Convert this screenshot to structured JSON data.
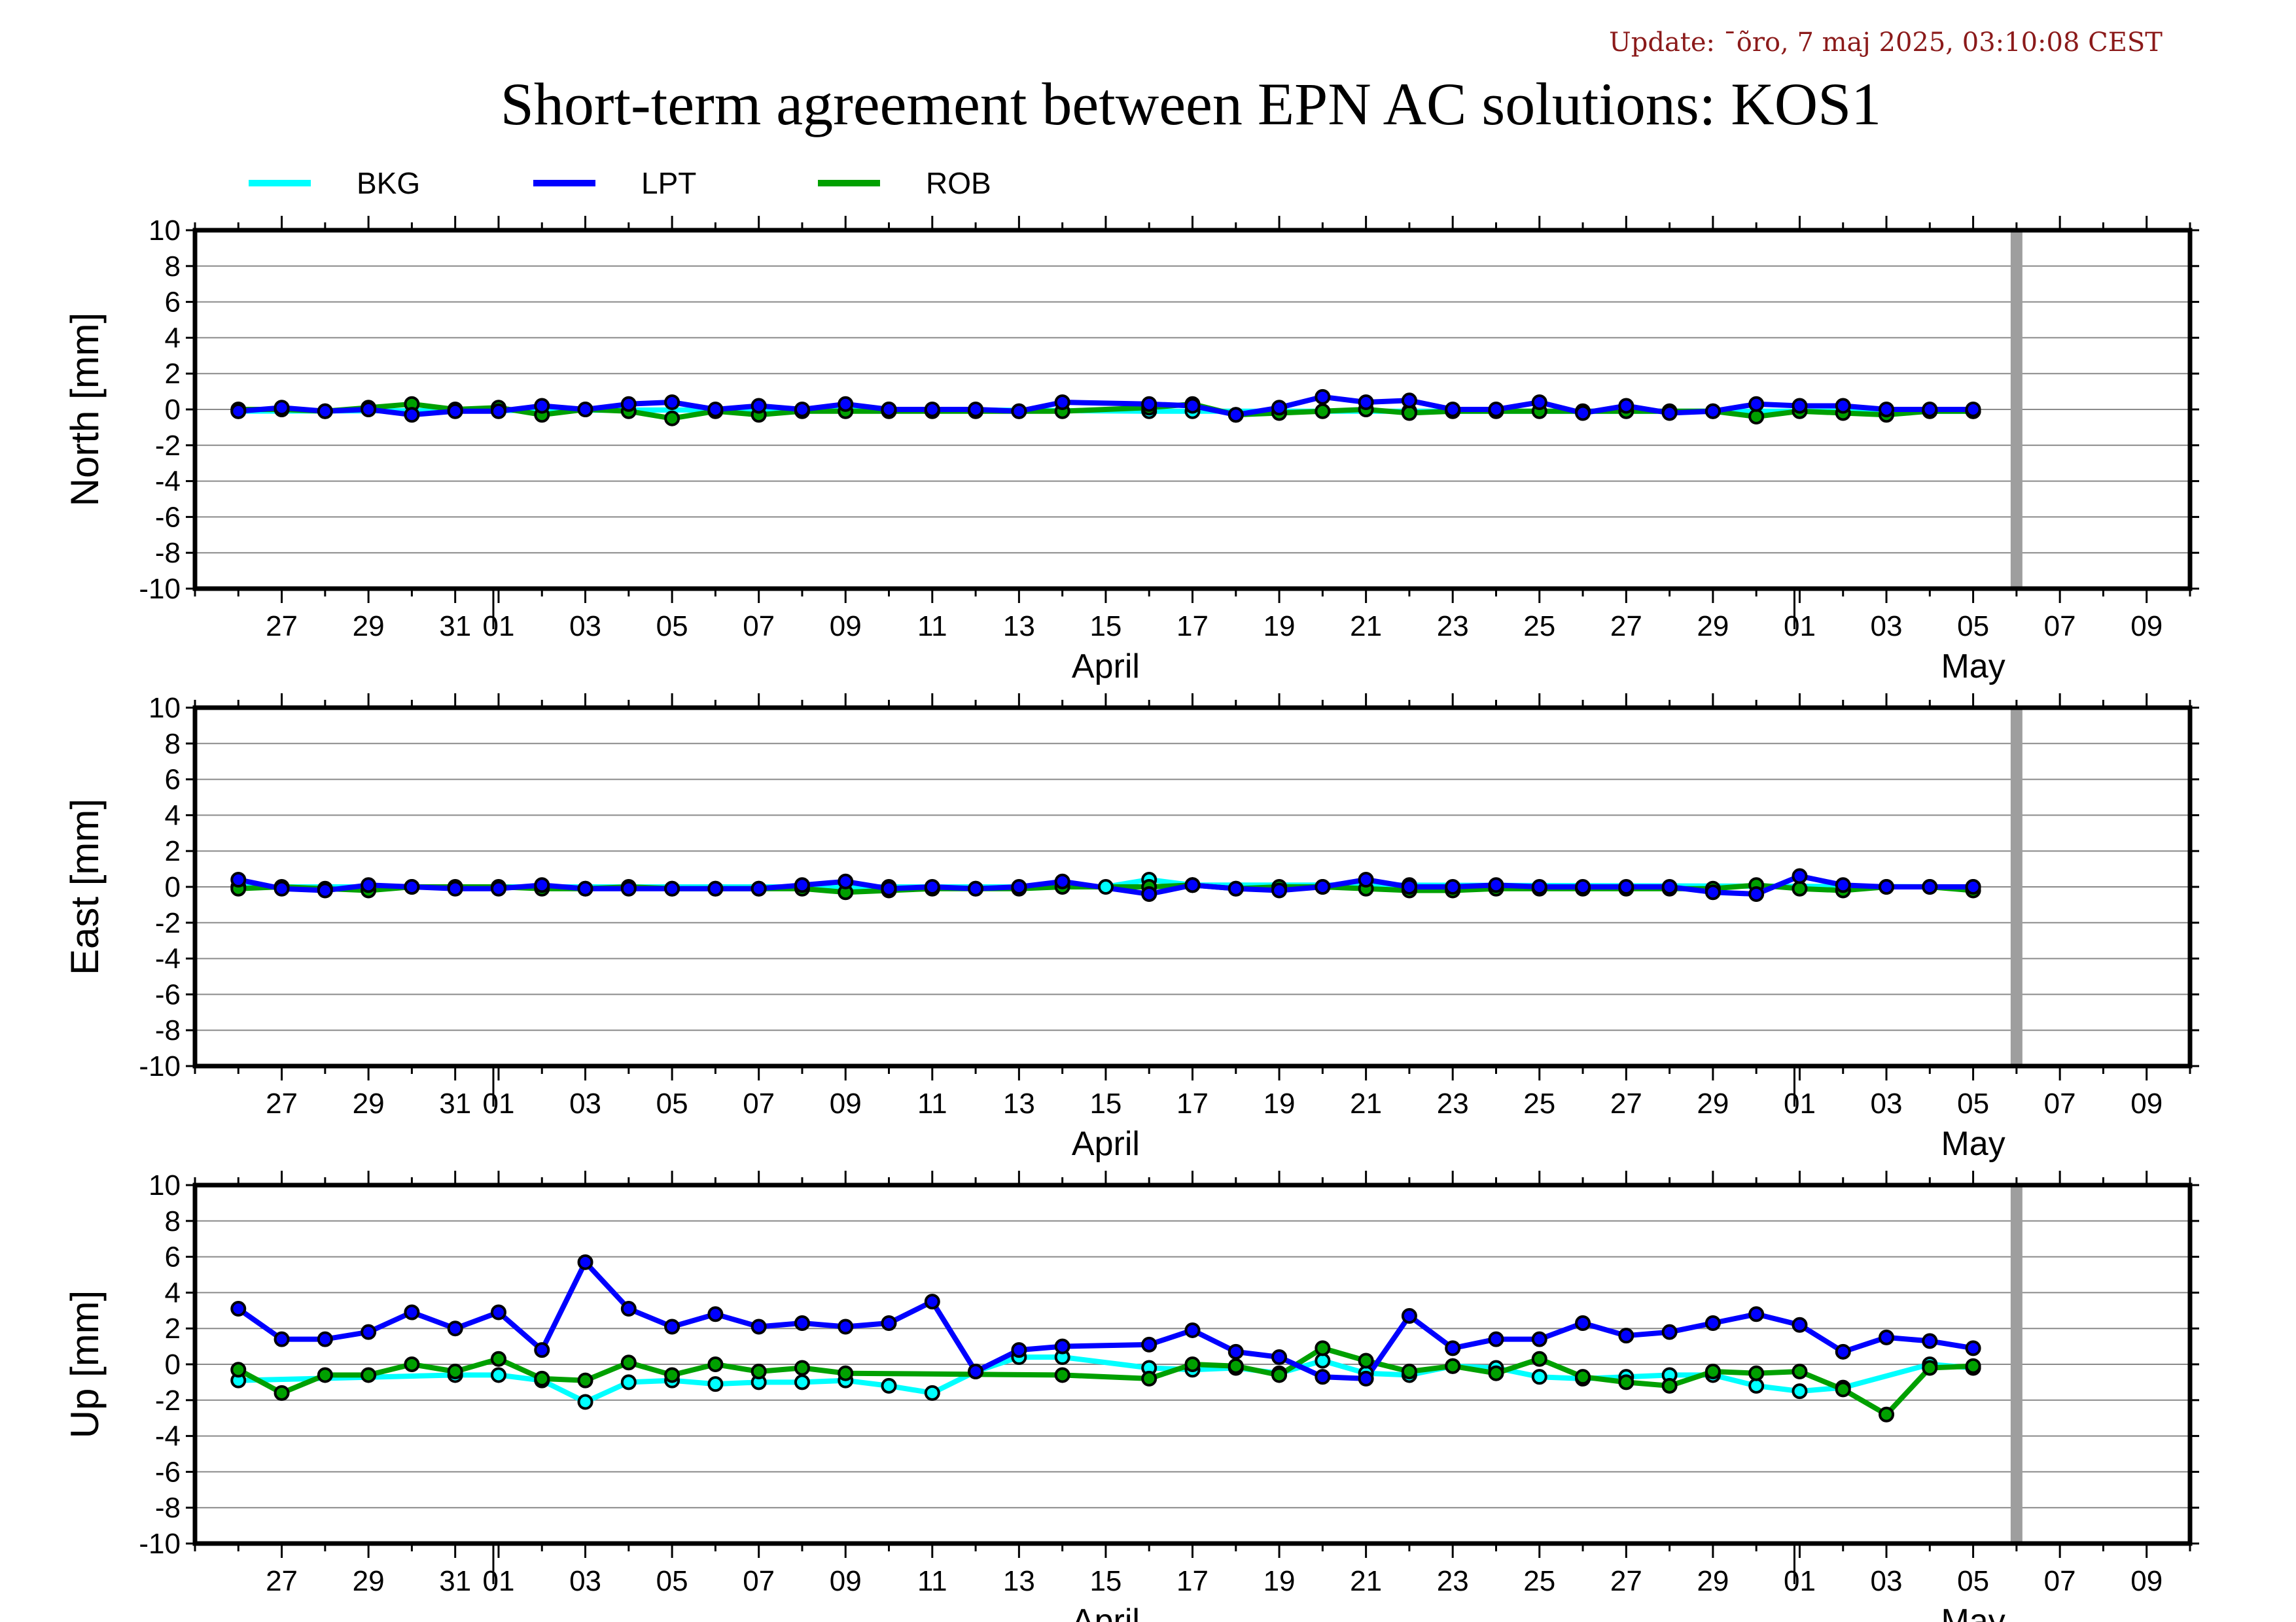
{
  "update_text": "Update: ¯õro, 7 maj 2025, 03:10:08 CEST",
  "title": "Short-term agreement between EPN AC solutions: KOS1",
  "legend": [
    {
      "name": "BKG",
      "color": "#00ffff"
    },
    {
      "name": "LPT",
      "color": "#0000ff"
    },
    {
      "name": "ROB",
      "color": "#00a000"
    }
  ],
  "chart_data": {
    "type": "line",
    "x_axis": {
      "range": [
        "2025-03-25",
        "2025-05-10"
      ],
      "tick_dates": [
        "2025-03-27",
        "2025-03-29",
        "2025-03-31",
        "2025-04-01",
        "2025-04-03",
        "2025-04-05",
        "2025-04-07",
        "2025-04-09",
        "2025-04-11",
        "2025-04-13",
        "2025-04-15",
        "2025-04-17",
        "2025-04-19",
        "2025-04-21",
        "2025-04-23",
        "2025-04-25",
        "2025-04-27",
        "2025-04-29",
        "2025-05-01",
        "2025-05-03",
        "2025-05-05",
        "2025-05-07",
        "2025-05-09"
      ],
      "tick_labels": [
        "27",
        "29",
        "31",
        "01",
        "03",
        "05",
        "07",
        "09",
        "11",
        "13",
        "15",
        "17",
        "19",
        "21",
        "23",
        "25",
        "27",
        "29",
        "01",
        "03",
        "05",
        "07",
        "09"
      ],
      "month_labels": [
        {
          "date": "2025-04-15",
          "label": "April"
        },
        {
          "date": "2025-05-05",
          "label": "May"
        }
      ],
      "marker_date": "2025-05-06"
    },
    "y_ticks": [
      "10",
      "8",
      "6",
      "4",
      "2",
      "0",
      "-2",
      "-4",
      "-6",
      "-8",
      "-10"
    ],
    "panels": [
      {
        "ylabel": "North [mm]",
        "ylim": [
          -10,
          10
        ],
        "series": [
          {
            "name": "BKG",
            "x": [
              "2025-03-26",
              "2025-04-10",
              "2025-04-16",
              "2025-04-17",
              "2025-04-22",
              "2025-05-05"
            ],
            "y": [
              -0.1,
              0.0,
              -0.1,
              -0.1,
              -0.1,
              -0.1
            ]
          },
          {
            "name": "LPT",
            "x": [
              "2025-03-26",
              "2025-03-27",
              "2025-03-28",
              "2025-03-29",
              "2025-03-30",
              "2025-03-31",
              "2025-04-01",
              "2025-04-02",
              "2025-04-03",
              "2025-04-04",
              "2025-04-05",
              "2025-04-06",
              "2025-04-07",
              "2025-04-08",
              "2025-04-09",
              "2025-04-10",
              "2025-04-11",
              "2025-04-12",
              "2025-04-13",
              "2025-04-14",
              "2025-04-16",
              "2025-04-17",
              "2025-04-18",
              "2025-04-19",
              "2025-04-20",
              "2025-04-21",
              "2025-04-22",
              "2025-04-23",
              "2025-04-24",
              "2025-04-25",
              "2025-04-26",
              "2025-04-27",
              "2025-04-28",
              "2025-04-29",
              "2025-04-30",
              "2025-05-01",
              "2025-05-02",
              "2025-05-03",
              "2025-05-04",
              "2025-05-05"
            ],
            "y": [
              -0.1,
              0.1,
              -0.1,
              0.0,
              -0.3,
              -0.1,
              -0.1,
              0.2,
              0.0,
              0.3,
              0.4,
              0.0,
              0.2,
              0.0,
              0.3,
              0.0,
              0.0,
              0.0,
              -0.1,
              0.4,
              0.3,
              0.2,
              -0.3,
              0.1,
              0.7,
              0.4,
              0.5,
              0.0,
              0.0,
              0.4,
              -0.2,
              0.2,
              -0.2,
              -0.1,
              0.3,
              0.2,
              0.2,
              0.0,
              0.0,
              0.0
            ]
          },
          {
            "name": "ROB",
            "x": [
              "2025-03-26",
              "2025-03-27",
              "2025-03-28",
              "2025-03-29",
              "2025-03-30",
              "2025-03-31",
              "2025-04-01",
              "2025-04-02",
              "2025-04-03",
              "2025-04-04",
              "2025-04-05",
              "2025-04-06",
              "2025-04-07",
              "2025-04-08",
              "2025-04-09",
              "2025-04-10",
              "2025-04-11",
              "2025-04-12",
              "2025-04-13",
              "2025-04-14",
              "2025-04-16",
              "2025-04-17",
              "2025-04-18",
              "2025-04-19",
              "2025-04-20",
              "2025-04-21",
              "2025-04-22",
              "2025-04-23",
              "2025-04-24",
              "2025-04-25",
              "2025-04-26",
              "2025-04-27",
              "2025-04-28",
              "2025-04-29",
              "2025-04-30",
              "2025-05-01",
              "2025-05-02",
              "2025-05-03",
              "2025-05-04",
              "2025-05-05"
            ],
            "y": [
              0.0,
              0.0,
              -0.1,
              0.1,
              0.3,
              0.0,
              0.1,
              -0.3,
              0.0,
              -0.1,
              -0.5,
              -0.1,
              -0.3,
              -0.1,
              -0.1,
              -0.1,
              -0.1,
              -0.1,
              -0.1,
              -0.1,
              0.1,
              0.3,
              -0.3,
              -0.2,
              -0.1,
              0.0,
              -0.2,
              -0.1,
              -0.1,
              -0.1,
              -0.1,
              -0.1,
              -0.1,
              -0.1,
              -0.4,
              -0.1,
              -0.2,
              -0.3,
              -0.1,
              -0.1
            ]
          }
        ]
      },
      {
        "ylabel": "East [mm]",
        "ylim": [
          -10,
          10
        ],
        "series": [
          {
            "name": "BKG",
            "x": [
              "2025-03-26",
              "2025-04-10",
              "2025-04-15",
              "2025-04-16",
              "2025-04-17",
              "2025-04-22",
              "2025-05-05"
            ],
            "y": [
              0.0,
              0.0,
              0.0,
              0.4,
              0.1,
              0.1,
              0.0
            ]
          },
          {
            "name": "LPT",
            "x": [
              "2025-03-26",
              "2025-03-27",
              "2025-03-28",
              "2025-03-29",
              "2025-03-30",
              "2025-03-31",
              "2025-04-01",
              "2025-04-02",
              "2025-04-03",
              "2025-04-04",
              "2025-04-05",
              "2025-04-06",
              "2025-04-07",
              "2025-04-08",
              "2025-04-09",
              "2025-04-10",
              "2025-04-11",
              "2025-04-12",
              "2025-04-13",
              "2025-04-14",
              "2025-04-16",
              "2025-04-17",
              "2025-04-18",
              "2025-04-19",
              "2025-04-20",
              "2025-04-21",
              "2025-04-22",
              "2025-04-23",
              "2025-04-24",
              "2025-04-25",
              "2025-04-26",
              "2025-04-27",
              "2025-04-28",
              "2025-04-29",
              "2025-04-30",
              "2025-05-01",
              "2025-05-02",
              "2025-05-03",
              "2025-05-04",
              "2025-05-05"
            ],
            "y": [
              0.4,
              -0.1,
              -0.2,
              0.1,
              0.0,
              -0.1,
              -0.1,
              0.1,
              -0.1,
              -0.1,
              -0.1,
              -0.1,
              -0.1,
              0.1,
              0.3,
              -0.1,
              0.0,
              -0.1,
              0.0,
              0.3,
              -0.4,
              0.1,
              -0.1,
              -0.2,
              0.0,
              0.4,
              0.0,
              0.0,
              0.1,
              0.0,
              0.0,
              0.0,
              0.0,
              -0.3,
              -0.4,
              0.6,
              0.1,
              0.0,
              0.0,
              0.0
            ]
          },
          {
            "name": "ROB",
            "x": [
              "2025-03-26",
              "2025-03-27",
              "2025-03-28",
              "2025-03-29",
              "2025-03-30",
              "2025-03-31",
              "2025-04-01",
              "2025-04-02",
              "2025-04-03",
              "2025-04-04",
              "2025-04-05",
              "2025-04-06",
              "2025-04-07",
              "2025-04-08",
              "2025-04-09",
              "2025-04-10",
              "2025-04-11",
              "2025-04-12",
              "2025-04-13",
              "2025-04-14",
              "2025-04-16",
              "2025-04-17",
              "2025-04-18",
              "2025-04-19",
              "2025-04-20",
              "2025-04-21",
              "2025-04-22",
              "2025-04-23",
              "2025-04-24",
              "2025-04-25",
              "2025-04-26",
              "2025-04-27",
              "2025-04-28",
              "2025-04-29",
              "2025-04-30",
              "2025-05-01",
              "2025-05-02",
              "2025-05-03",
              "2025-05-04",
              "2025-05-05"
            ],
            "y": [
              -0.1,
              0.0,
              -0.1,
              -0.2,
              0.0,
              0.0,
              0.0,
              -0.1,
              -0.1,
              0.0,
              -0.1,
              -0.1,
              -0.1,
              -0.1,
              -0.3,
              -0.2,
              -0.1,
              -0.1,
              -0.1,
              0.0,
              0.0,
              0.1,
              -0.1,
              0.0,
              0.0,
              -0.1,
              -0.2,
              -0.2,
              -0.1,
              -0.1,
              -0.1,
              -0.1,
              -0.1,
              -0.1,
              0.1,
              -0.1,
              -0.2,
              0.0,
              0.0,
              -0.2
            ]
          }
        ]
      },
      {
        "ylabel": "Up [mm]",
        "ylim": [
          -10,
          10
        ],
        "series": [
          {
            "name": "BKG",
            "x": [
              "2025-03-26",
              "2025-03-31",
              "2025-04-01",
              "2025-04-02",
              "2025-04-03",
              "2025-04-04",
              "2025-04-05",
              "2025-04-06",
              "2025-04-07",
              "2025-04-08",
              "2025-04-09",
              "2025-04-10",
              "2025-04-11",
              "2025-04-12",
              "2025-04-13",
              "2025-04-14",
              "2025-04-16",
              "2025-04-17",
              "2025-04-18",
              "2025-04-19",
              "2025-04-20",
              "2025-04-21",
              "2025-04-22",
              "2025-04-23",
              "2025-04-24",
              "2025-04-25",
              "2025-04-26",
              "2025-04-27",
              "2025-04-28",
              "2025-04-29",
              "2025-04-30",
              "2025-05-01",
              "2025-05-02",
              "2025-05-04",
              "2025-05-05"
            ],
            "y": [
              -0.9,
              -0.6,
              -0.6,
              -0.9,
              -2.1,
              -1.0,
              -0.9,
              -1.1,
              -1.0,
              -1.0,
              -0.9,
              -1.2,
              -1.6,
              -0.4,
              0.4,
              0.4,
              -0.2,
              -0.3,
              -0.2,
              -0.5,
              0.2,
              -0.5,
              -0.6,
              -0.1,
              -0.2,
              -0.7,
              -0.8,
              -0.7,
              -0.6,
              -0.6,
              -1.2,
              -1.5,
              -1.3,
              0.0,
              -0.2
            ]
          },
          {
            "name": "LPT",
            "x": [
              "2025-03-26",
              "2025-03-27",
              "2025-03-28",
              "2025-03-29",
              "2025-03-30",
              "2025-03-31",
              "2025-04-01",
              "2025-04-02",
              "2025-04-03",
              "2025-04-04",
              "2025-04-05",
              "2025-04-06",
              "2025-04-07",
              "2025-04-08",
              "2025-04-09",
              "2025-04-10",
              "2025-04-11",
              "2025-04-12",
              "2025-04-13",
              "2025-04-14",
              "2025-04-16",
              "2025-04-17",
              "2025-04-18",
              "2025-04-19",
              "2025-04-20",
              "2025-04-21",
              "2025-04-22",
              "2025-04-23",
              "2025-04-24",
              "2025-04-25",
              "2025-04-26",
              "2025-04-27",
              "2025-04-28",
              "2025-04-29",
              "2025-04-30",
              "2025-05-01",
              "2025-05-02",
              "2025-05-03",
              "2025-05-04",
              "2025-05-05"
            ],
            "y": [
              3.1,
              1.4,
              1.4,
              1.8,
              2.9,
              2.0,
              2.9,
              0.8,
              5.7,
              3.1,
              2.1,
              2.8,
              2.1,
              2.3,
              2.1,
              2.3,
              3.5,
              -0.4,
              0.8,
              1.0,
              1.1,
              1.9,
              0.7,
              0.4,
              -0.7,
              -0.8,
              2.7,
              0.9,
              1.4,
              1.4,
              2.3,
              1.6,
              1.8,
              2.3,
              2.8,
              2.2,
              0.7,
              1.5,
              1.3,
              0.9
            ]
          },
          {
            "name": "ROB",
            "x": [
              "2025-03-26",
              "2025-03-27",
              "2025-03-28",
              "2025-03-29",
              "2025-03-30",
              "2025-03-31",
              "2025-04-01",
              "2025-04-02",
              "2025-04-03",
              "2025-04-04",
              "2025-04-05",
              "2025-04-06",
              "2025-04-07",
              "2025-04-08",
              "2025-04-09",
              "2025-04-14",
              "2025-04-16",
              "2025-04-17",
              "2025-04-18",
              "2025-04-19",
              "2025-04-20",
              "2025-04-21",
              "2025-04-22",
              "2025-04-23",
              "2025-04-24",
              "2025-04-25",
              "2025-04-26",
              "2025-04-27",
              "2025-04-28",
              "2025-04-29",
              "2025-04-30",
              "2025-05-01",
              "2025-05-02",
              "2025-05-03",
              "2025-05-04",
              "2025-05-05"
            ],
            "y": [
              -0.3,
              -1.6,
              -0.6,
              -0.6,
              0.0,
              -0.4,
              0.3,
              -0.8,
              -0.9,
              0.1,
              -0.6,
              0.0,
              -0.4,
              -0.2,
              -0.5,
              -0.6,
              -0.8,
              0.0,
              -0.1,
              -0.6,
              0.9,
              0.2,
              -0.4,
              -0.1,
              -0.5,
              0.3,
              -0.7,
              -1.0,
              -1.2,
              -0.4,
              -0.5,
              -0.4,
              -1.4,
              -2.8,
              -0.2,
              -0.1
            ]
          }
        ]
      }
    ]
  }
}
